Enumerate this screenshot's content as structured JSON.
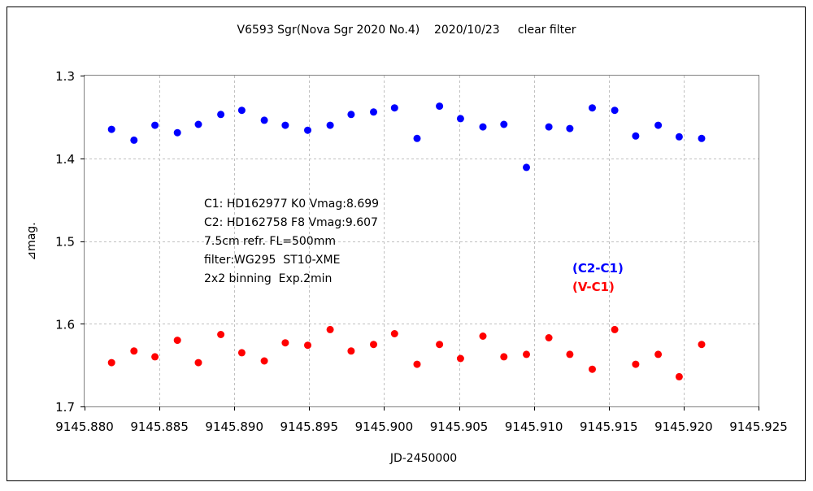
{
  "chart_data": {
    "type": "scatter",
    "title": "V6593 Sgr(Nova Sgr 2020 No.4)    2020/10/23     clear filter",
    "xlabel": "JD-2450000",
    "ylabel": "⊿mag.",
    "xlim": [
      9145.88,
      9145.925
    ],
    "ylim": [
      1.3,
      1.7
    ],
    "y_inverted": true,
    "grid": true,
    "x_ticks": [
      9145.88,
      9145.885,
      9145.89,
      9145.895,
      9145.9,
      9145.905,
      9145.91,
      9145.915,
      9145.92,
      9145.925
    ],
    "x_tick_labels": [
      "9145.880",
      "9145.885",
      "9145.890",
      "9145.895",
      "9145.900",
      "9145.905",
      "9145.910",
      "9145.915",
      "9145.920",
      "9145.925"
    ],
    "y_ticks": [
      1.3,
      1.4,
      1.5,
      1.6,
      1.7
    ],
    "y_tick_labels": [
      "1.3",
      "1.4",
      "1.5",
      "1.6",
      "1.7"
    ],
    "annotations": [
      "C1: HD162977 K0 Vmag:8.699",
      "C2: HD162758 F8 Vmag:9.607",
      "7.5cm refr. FL=500mm",
      "filter:WG295  ST10-XME",
      "2x2 binning  Exp.2min"
    ],
    "series": [
      {
        "name": "(C2-C1)",
        "color": "#0000ff",
        "x": [
          9145.8818,
          9145.8833,
          9145.8847,
          9145.8862,
          9145.8876,
          9145.8891,
          9145.8905,
          9145.892,
          9145.8934,
          9145.8949,
          9145.8964,
          9145.8978,
          9145.8993,
          9145.9007,
          9145.9022,
          9145.9037,
          9145.9051,
          9145.9066,
          9145.908,
          9145.9095,
          9145.911,
          9145.9124,
          9145.9139,
          9145.9154,
          9145.9168,
          9145.9183,
          9145.9197,
          9145.9212
        ],
        "y": [
          1.365,
          1.378,
          1.36,
          1.369,
          1.359,
          1.347,
          1.342,
          1.354,
          1.36,
          1.366,
          1.36,
          1.347,
          1.344,
          1.339,
          1.376,
          1.337,
          1.352,
          1.362,
          1.359,
          1.411,
          1.362,
          1.364,
          1.339,
          1.342,
          1.373,
          1.36,
          1.374,
          1.376
        ]
      },
      {
        "name": "(V-C1)",
        "color": "#ff0000",
        "x": [
          9145.8818,
          9145.8833,
          9145.8847,
          9145.8862,
          9145.8876,
          9145.8891,
          9145.8905,
          9145.892,
          9145.8934,
          9145.8949,
          9145.8964,
          9145.8978,
          9145.8993,
          9145.9007,
          9145.9022,
          9145.9037,
          9145.9051,
          9145.9066,
          9145.908,
          9145.9095,
          9145.911,
          9145.9124,
          9145.9139,
          9145.9154,
          9145.9168,
          9145.9183,
          9145.9197,
          9145.9212
        ],
        "y": [
          1.647,
          1.633,
          1.64,
          1.62,
          1.647,
          1.613,
          1.635,
          1.645,
          1.623,
          1.626,
          1.607,
          1.633,
          1.625,
          1.612,
          1.649,
          1.625,
          1.642,
          1.615,
          1.64,
          1.637,
          1.617,
          1.637,
          1.655,
          1.607,
          1.649,
          1.637,
          1.664,
          1.625
        ]
      }
    ]
  }
}
